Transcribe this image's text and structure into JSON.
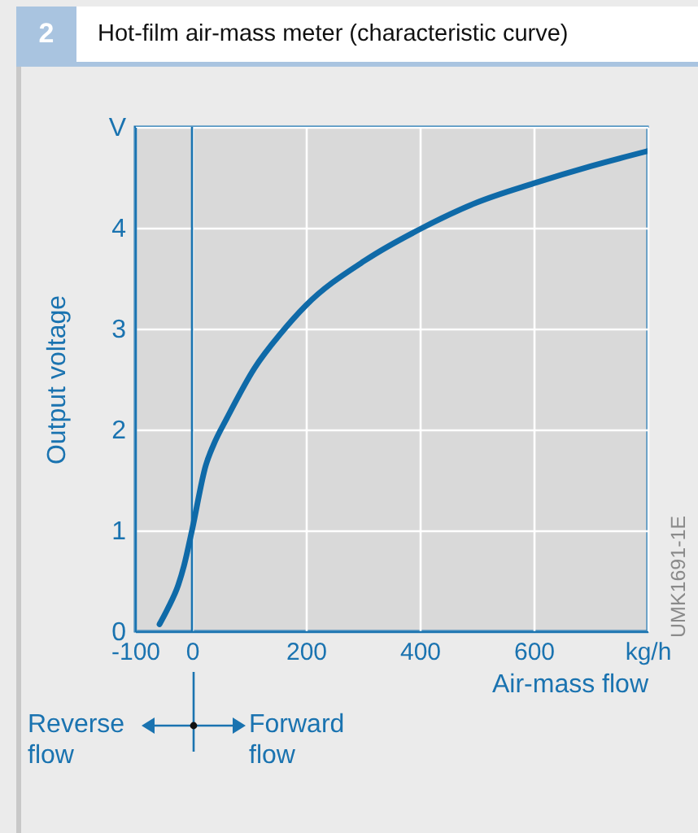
{
  "chart_data": {
    "type": "line",
    "title": "Hot-film air-mass meter (characteristic curve)",
    "xlabel": "Air-mass flow",
    "ylabel": "Output voltage",
    "annotations": [
      "2",
      "Reverse flow",
      "Forward flow",
      "UMK1691-1E"
    ],
    "x": [
      -57,
      -43,
      -24,
      -14,
      0,
      24,
      38,
      62,
      110,
      157,
      200,
      305,
      405,
      500,
      600,
      700,
      800
    ],
    "series": [
      {
        "color": "#0f6aa8",
        "values": [
          0.07,
          0.22,
          0.46,
          0.65,
          1.0,
          1.64,
          1.85,
          2.12,
          2.61,
          2.96,
          3.23,
          3.68,
          4.0,
          4.25,
          4.44,
          4.61,
          4.76
        ]
      }
    ],
    "xlim": [
      -100,
      800
    ],
    "xticks": [
      -100,
      0,
      200,
      400,
      600,
      {
        "value": 800,
        "label": "kg/h"
      }
    ],
    "ylim": [
      0,
      5
    ],
    "yticks": [
      0,
      1,
      2,
      3,
      4,
      {
        "value": 5,
        "label": "V"
      }
    ],
    "ref_lines": [
      {
        "axis": "x",
        "value": 0,
        "color": "#1a73b0"
      }
    ],
    "grid": true,
    "marker": "none",
    "line_style": "solid"
  }
}
